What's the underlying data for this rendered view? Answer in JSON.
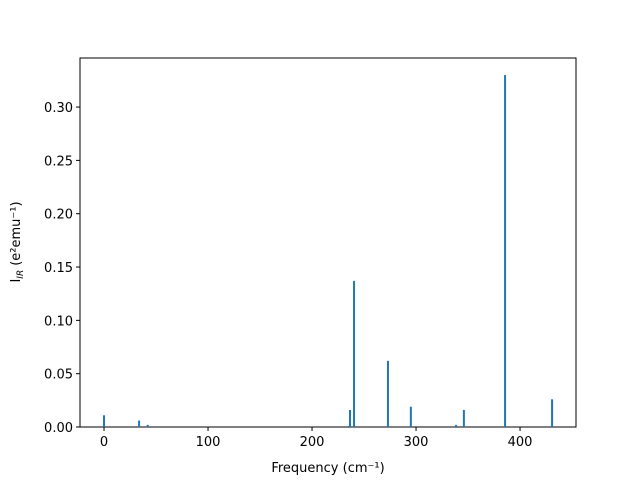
{
  "chart_data": {
    "type": "bar",
    "xlabel": "Frequency (cm⁻¹)",
    "ylabel": {
      "text": "I",
      "subscript": "IR",
      "unit": "(e²emu⁻¹)"
    },
    "x": [
      0,
      33.7,
      42,
      235.6,
      236.5,
      240.4,
      273,
      295,
      338.5,
      346,
      385.6,
      430.8
    ],
    "values": [
      0.011,
      0.006,
      0.002,
      0.001,
      0.016,
      0.137,
      0.062,
      0.019,
      0.002,
      0.016,
      0.33,
      0.026
    ],
    "color": "#1f77b4",
    "xlim": [
      -23.1,
      453.8
    ],
    "ylim": [
      0,
      0.346
    ],
    "xticks": [
      0,
      100,
      200,
      300,
      400
    ],
    "yticks": [
      {
        "value": 0,
        "label": "0.00"
      },
      0.05,
      {
        "value": 0.1,
        "label": "0.10"
      },
      0.15,
      {
        "value": 0.2,
        "label": "0.20"
      },
      0.25,
      {
        "value": 0.3,
        "label": "0.30"
      }
    ],
    "grid": false
  }
}
